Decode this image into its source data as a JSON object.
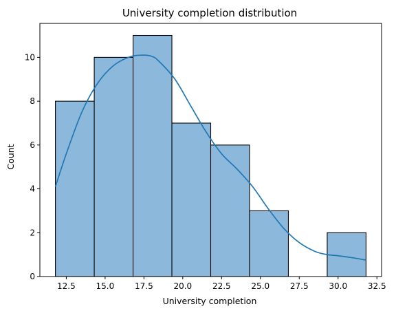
{
  "chart_data": {
    "type": "bar",
    "title": "University completion distribution",
    "xlabel": "University completion",
    "ylabel": "Count",
    "bin_edges": [
      11.8,
      14.3,
      16.8,
      19.3,
      21.8,
      24.3,
      26.8,
      29.3,
      31.8
    ],
    "counts": [
      8,
      10,
      11,
      7,
      6,
      3,
      0,
      2
    ],
    "xlim": [
      10.8,
      32.8
    ],
    "ylim": [
      0,
      11.55
    ],
    "xticks": [
      12.5,
      15.0,
      17.5,
      20.0,
      22.5,
      25.0,
      27.5,
      30.0,
      32.5
    ],
    "xtick_labels": [
      "12.5",
      "15.0",
      "17.5",
      "20.0",
      "22.5",
      "25.0",
      "27.5",
      "30.0",
      "32.5"
    ],
    "yticks": [
      0,
      2,
      4,
      6,
      8,
      10
    ],
    "ytick_labels": [
      "0",
      "2",
      "4",
      "6",
      "8",
      "10"
    ],
    "grid": false,
    "kde": {
      "x": [
        11.8,
        12.5,
        13.5,
        14.5,
        15.5,
        16.5,
        17.3,
        18.0,
        18.5,
        19.5,
        20.5,
        21.5,
        22.5,
        23.5,
        24.5,
        25.5,
        26.5,
        27.5,
        28.5,
        29.3,
        30.0,
        31.0,
        31.8
      ],
      "y": [
        4.1,
        5.6,
        7.5,
        8.8,
        9.6,
        10.0,
        10.1,
        10.05,
        9.8,
        9.0,
        7.8,
        6.6,
        5.6,
        4.9,
        4.1,
        3.1,
        2.2,
        1.55,
        1.15,
        1.0,
        0.95,
        0.85,
        0.75
      ]
    },
    "colors": {
      "bar_fill": "#8cb9db",
      "bar_edge": "#000000",
      "kde_line": "#1f77b4",
      "axis": "#000000"
    }
  }
}
